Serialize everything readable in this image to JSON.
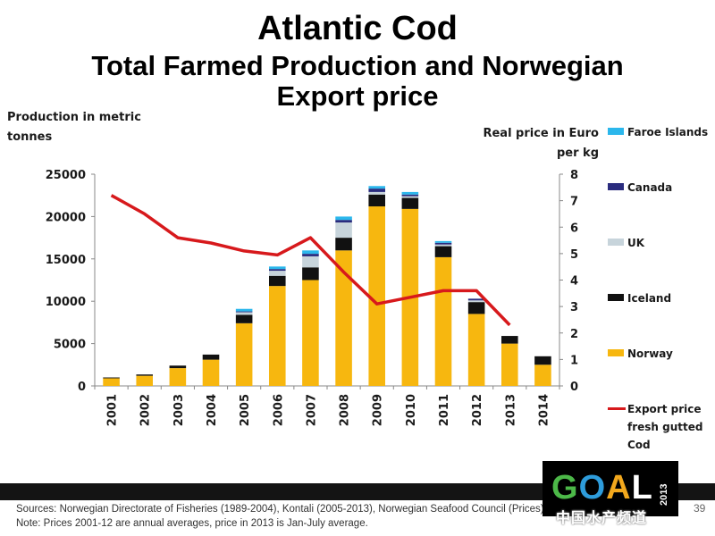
{
  "title_line1": "Atlantic Cod",
  "title_line2": "Total Farmed Production and Norwegian",
  "title_line3": "Export price",
  "sources": "Sources:  Norwegian Directorate of Fisheries (1989-2004), Kontali (2005-2013), Norwegian Seafood Council (Prices) . Note:  Prices 2001-12 are annual averages, price in 2013 is Jan-July average.",
  "page_number": "39",
  "logo": {
    "text": "GOAL",
    "year": "2013"
  },
  "watermark": "中国水产频道",
  "colors": {
    "norway": "#F7B70F",
    "iceland": "#111111",
    "uk": "#C7D4DB",
    "canada": "#2A2C7E",
    "faroe": "#2BB7EC",
    "price_line": "#D7191C",
    "axis": "#888888"
  },
  "chart_data": {
    "type": "bar",
    "stacked": true,
    "categories": [
      "2001",
      "2002",
      "2003",
      "2004",
      "2005",
      "2006",
      "2007",
      "2008",
      "2009",
      "2010",
      "2011",
      "2012",
      "2013",
      "2014"
    ],
    "ylabel": "Production in metric tonnes",
    "y2label": "Real price in Euro per kg",
    "ylim": [
      0,
      25000
    ],
    "y2lim": [
      0,
      8
    ],
    "yticks": [
      "0",
      "5000",
      "10000",
      "15000",
      "20000",
      "25000"
    ],
    "y2ticks": [
      "0",
      "1",
      "2",
      "3",
      "4",
      "5",
      "6",
      "7",
      "8"
    ],
    "series": [
      {
        "name": "Norway",
        "color_key": "norway",
        "values": [
          900,
          1200,
          2100,
          3100,
          7400,
          11800,
          12500,
          16000,
          21200,
          20900,
          15200,
          8500,
          5000,
          2500
        ]
      },
      {
        "name": "Iceland",
        "color_key": "iceland",
        "values": [
          100,
          150,
          300,
          600,
          1000,
          1200,
          1500,
          1500,
          1400,
          1300,
          1300,
          1400,
          900,
          1000
        ]
      },
      {
        "name": "UK",
        "color_key": "uk",
        "values": [
          0,
          0,
          0,
          0,
          300,
          600,
          1300,
          1800,
          300,
          200,
          200,
          200,
          0,
          0
        ]
      },
      {
        "name": "Canada",
        "color_key": "canada",
        "values": [
          0,
          0,
          0,
          0,
          100,
          200,
          300,
          300,
          400,
          200,
          200,
          200,
          0,
          0
        ]
      },
      {
        "name": "Faroe Islands",
        "color_key": "faroe",
        "values": [
          0,
          0,
          0,
          0,
          300,
          300,
          400,
          400,
          300,
          300,
          200,
          0,
          0,
          0
        ]
      }
    ],
    "line_series": {
      "name": "Export price fresh gutted Cod",
      "axis": "right",
      "values": [
        7.2,
        6.5,
        5.6,
        5.4,
        5.1,
        4.95,
        5.6,
        4.3,
        3.1,
        3.35,
        3.6,
        3.6,
        2.3,
        null
      ]
    },
    "legend": [
      {
        "label": "Faroe Islands",
        "color_key": "faroe",
        "kind": "box"
      },
      {
        "label": "Canada",
        "color_key": "canada",
        "kind": "box"
      },
      {
        "label": "UK",
        "color_key": "uk",
        "kind": "box"
      },
      {
        "label": "Iceland",
        "color_key": "iceland",
        "kind": "box"
      },
      {
        "label": "Norway",
        "color_key": "norway",
        "kind": "box"
      },
      {
        "label": "Export price fresh gutted Cod",
        "color_key": "price_line",
        "kind": "line"
      }
    ],
    "legend_position": "right",
    "grid": false
  }
}
